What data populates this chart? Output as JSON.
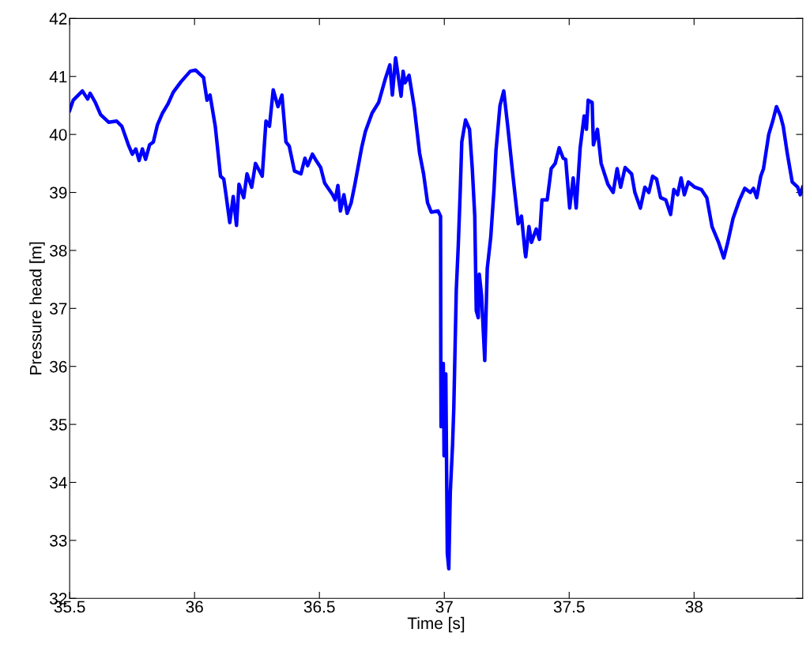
{
  "chart_data": {
    "type": "line",
    "xlabel": "Time [s]",
    "ylabel": "Pressure head [m]",
    "xlim": [
      35.5,
      38.435
    ],
    "xticks": [
      35.5,
      36,
      36.5,
      37,
      37.5,
      38
    ],
    "ylim": [
      32,
      42
    ],
    "yticks": [
      32,
      33,
      34,
      35,
      36,
      37,
      38,
      39,
      40,
      41,
      42
    ],
    "grid": false,
    "legend": false,
    "marker": "none",
    "line_style": "solid",
    "series": [
      {
        "color": "#0000ff",
        "x": [
          35.5,
          35.514,
          35.551,
          35.572,
          35.582,
          35.603,
          35.624,
          35.656,
          35.688,
          35.709,
          35.735,
          35.751,
          35.765,
          35.778,
          35.791,
          35.804,
          35.82,
          35.835,
          35.851,
          35.872,
          35.893,
          35.915,
          35.946,
          35.983,
          36.004,
          36.036,
          36.05,
          36.062,
          36.083,
          36.104,
          36.117,
          36.126,
          36.141,
          36.155,
          36.168,
          36.178,
          36.197,
          36.21,
          36.229,
          36.244,
          36.271,
          36.286,
          36.3,
          36.315,
          36.334,
          36.35,
          36.366,
          36.379,
          36.4,
          36.426,
          36.442,
          36.453,
          36.472,
          36.484,
          36.505,
          36.521,
          36.553,
          36.563,
          36.574,
          36.584,
          36.598,
          36.611,
          36.627,
          36.642,
          36.669,
          36.684,
          36.711,
          36.737,
          36.764,
          36.782,
          36.792,
          36.805,
          36.827,
          36.835,
          36.843,
          36.859,
          36.88,
          36.901,
          36.917,
          36.933,
          36.948,
          36.975,
          36.985,
          36.986,
          36.987,
          36.996,
          36.999,
          37.006,
          37.012,
          37.018,
          37.024,
          37.033,
          37.038,
          37.048,
          37.056,
          37.064,
          37.07,
          37.085,
          37.101,
          37.112,
          37.122,
          37.128,
          37.136,
          37.14,
          37.149,
          37.162,
          37.172,
          37.186,
          37.199,
          37.207,
          37.223,
          37.238,
          37.254,
          37.275,
          37.296,
          37.309,
          37.323,
          37.326,
          37.339,
          37.349,
          37.368,
          37.381,
          37.391,
          37.412,
          37.428,
          37.444,
          37.46,
          37.476,
          37.486,
          37.502,
          37.516,
          37.528,
          37.544,
          37.56,
          37.569,
          37.576,
          37.592,
          37.597,
          37.613,
          37.628,
          37.655,
          37.676,
          37.692,
          37.706,
          37.724,
          37.75,
          37.763,
          37.785,
          37.803,
          37.819,
          37.834,
          37.85,
          37.866,
          37.887,
          37.906,
          37.919,
          37.934,
          37.948,
          37.961,
          37.977,
          38.003,
          38.029,
          38.051,
          38.072,
          38.098,
          38.119,
          38.135,
          38.156,
          38.182,
          38.203,
          38.225,
          38.238,
          38.251,
          38.267,
          38.278,
          38.299,
          38.315,
          38.33,
          38.346,
          38.357,
          38.373,
          38.393,
          38.415,
          38.425,
          38.435
        ],
        "values": [
          40.41,
          40.59,
          40.75,
          40.61,
          40.71,
          40.55,
          40.34,
          40.21,
          40.23,
          40.14,
          39.82,
          39.66,
          39.75,
          39.55,
          39.75,
          39.57,
          39.82,
          39.87,
          40.16,
          40.37,
          40.52,
          40.73,
          40.91,
          41.09,
          41.11,
          40.98,
          40.59,
          40.68,
          40.14,
          39.28,
          39.23,
          38.96,
          38.48,
          38.93,
          38.43,
          39.14,
          38.91,
          39.32,
          39.09,
          39.5,
          39.28,
          40.23,
          40.14,
          40.77,
          40.48,
          40.68,
          39.87,
          39.8,
          39.37,
          39.32,
          39.59,
          39.46,
          39.66,
          39.57,
          39.43,
          39.16,
          38.96,
          38.87,
          39.12,
          38.68,
          38.96,
          38.64,
          38.82,
          39.14,
          39.77,
          40.05,
          40.37,
          40.55,
          40.96,
          41.2,
          40.68,
          41.32,
          40.66,
          41.09,
          40.89,
          41.02,
          40.46,
          39.68,
          39.32,
          38.82,
          38.66,
          38.68,
          38.59,
          36.1,
          34.96,
          36.05,
          34.46,
          35.87,
          32.78,
          32.51,
          33.83,
          34.64,
          35.28,
          37.32,
          38.09,
          39.05,
          39.87,
          40.25,
          40.09,
          39.41,
          38.59,
          36.96,
          36.84,
          37.59,
          37.23,
          36.1,
          37.69,
          38.23,
          39.05,
          39.73,
          40.5,
          40.75,
          40.14,
          39.28,
          38.46,
          38.59,
          37.98,
          37.89,
          38.41,
          38.14,
          38.37,
          38.19,
          38.87,
          38.87,
          39.41,
          39.5,
          39.77,
          39.59,
          39.57,
          38.73,
          39.25,
          38.73,
          39.77,
          40.32,
          40.09,
          40.59,
          40.55,
          39.82,
          40.09,
          39.5,
          39.14,
          39.0,
          39.41,
          39.09,
          39.43,
          39.32,
          39.0,
          38.73,
          39.09,
          39.0,
          39.28,
          39.23,
          38.91,
          38.87,
          38.62,
          39.05,
          38.96,
          39.25,
          38.96,
          39.18,
          39.09,
          39.05,
          38.91,
          38.41,
          38.14,
          37.87,
          38.14,
          38.55,
          38.87,
          39.07,
          39.0,
          39.07,
          38.91,
          39.28,
          39.41,
          40.0,
          40.23,
          40.48,
          40.32,
          40.14,
          39.68,
          39.18,
          39.09,
          38.96,
          39.09
        ]
      }
    ]
  }
}
